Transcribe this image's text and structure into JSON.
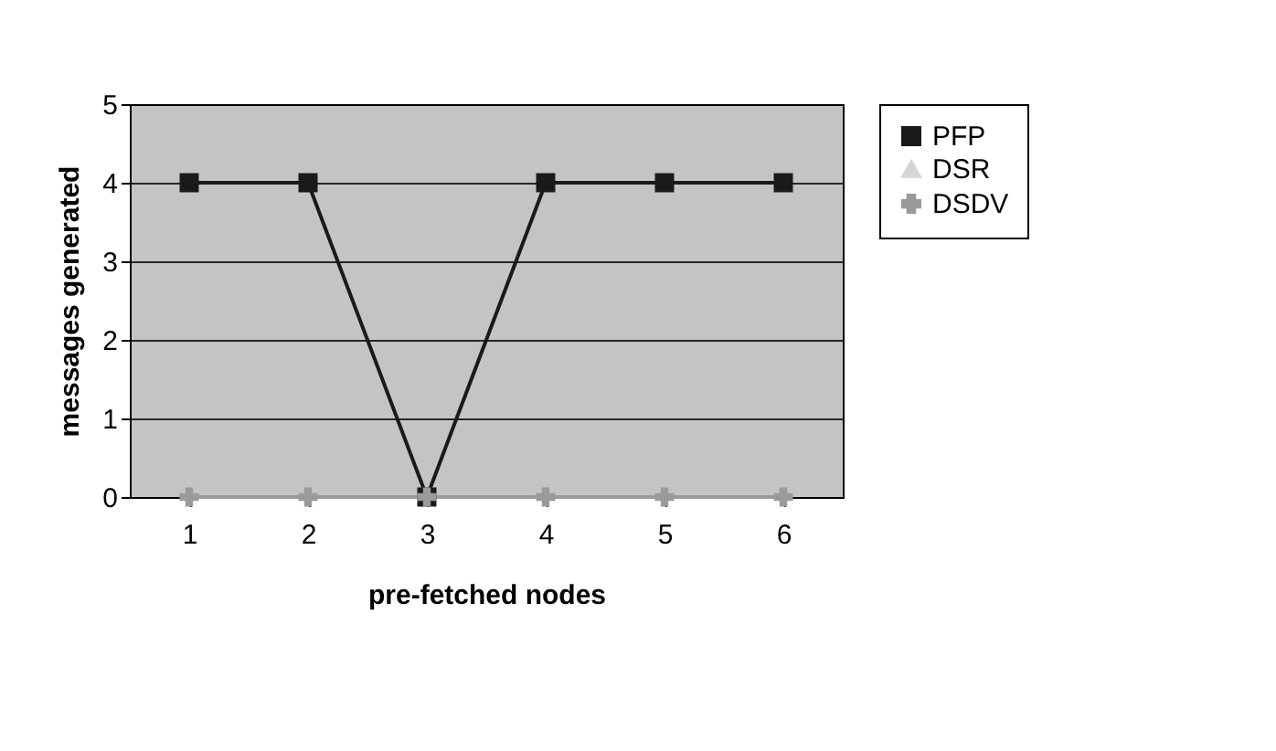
{
  "chart_data": {
    "type": "line",
    "xlabel": "pre-fetched nodes",
    "ylabel": "messages generated",
    "categories": [
      "1",
      "2",
      "3",
      "4",
      "5",
      "6"
    ],
    "series": [
      {
        "name": "PFP",
        "color": "#1a1a1a",
        "marker": "square",
        "values": [
          4,
          4,
          0,
          4,
          4,
          4
        ]
      },
      {
        "name": "DSR",
        "color": "#d6d6d6",
        "marker": "triangle",
        "values": [
          null,
          null,
          null,
          null,
          null,
          null
        ]
      },
      {
        "name": "DSDV",
        "color": "#9a9a9a",
        "marker": "cross",
        "values": [
          0,
          0,
          0,
          0,
          0,
          0
        ]
      }
    ],
    "ylim": [
      0,
      5
    ],
    "yticks": [
      0,
      1,
      2,
      3,
      4,
      5
    ],
    "grid": "y",
    "legend": "right"
  }
}
